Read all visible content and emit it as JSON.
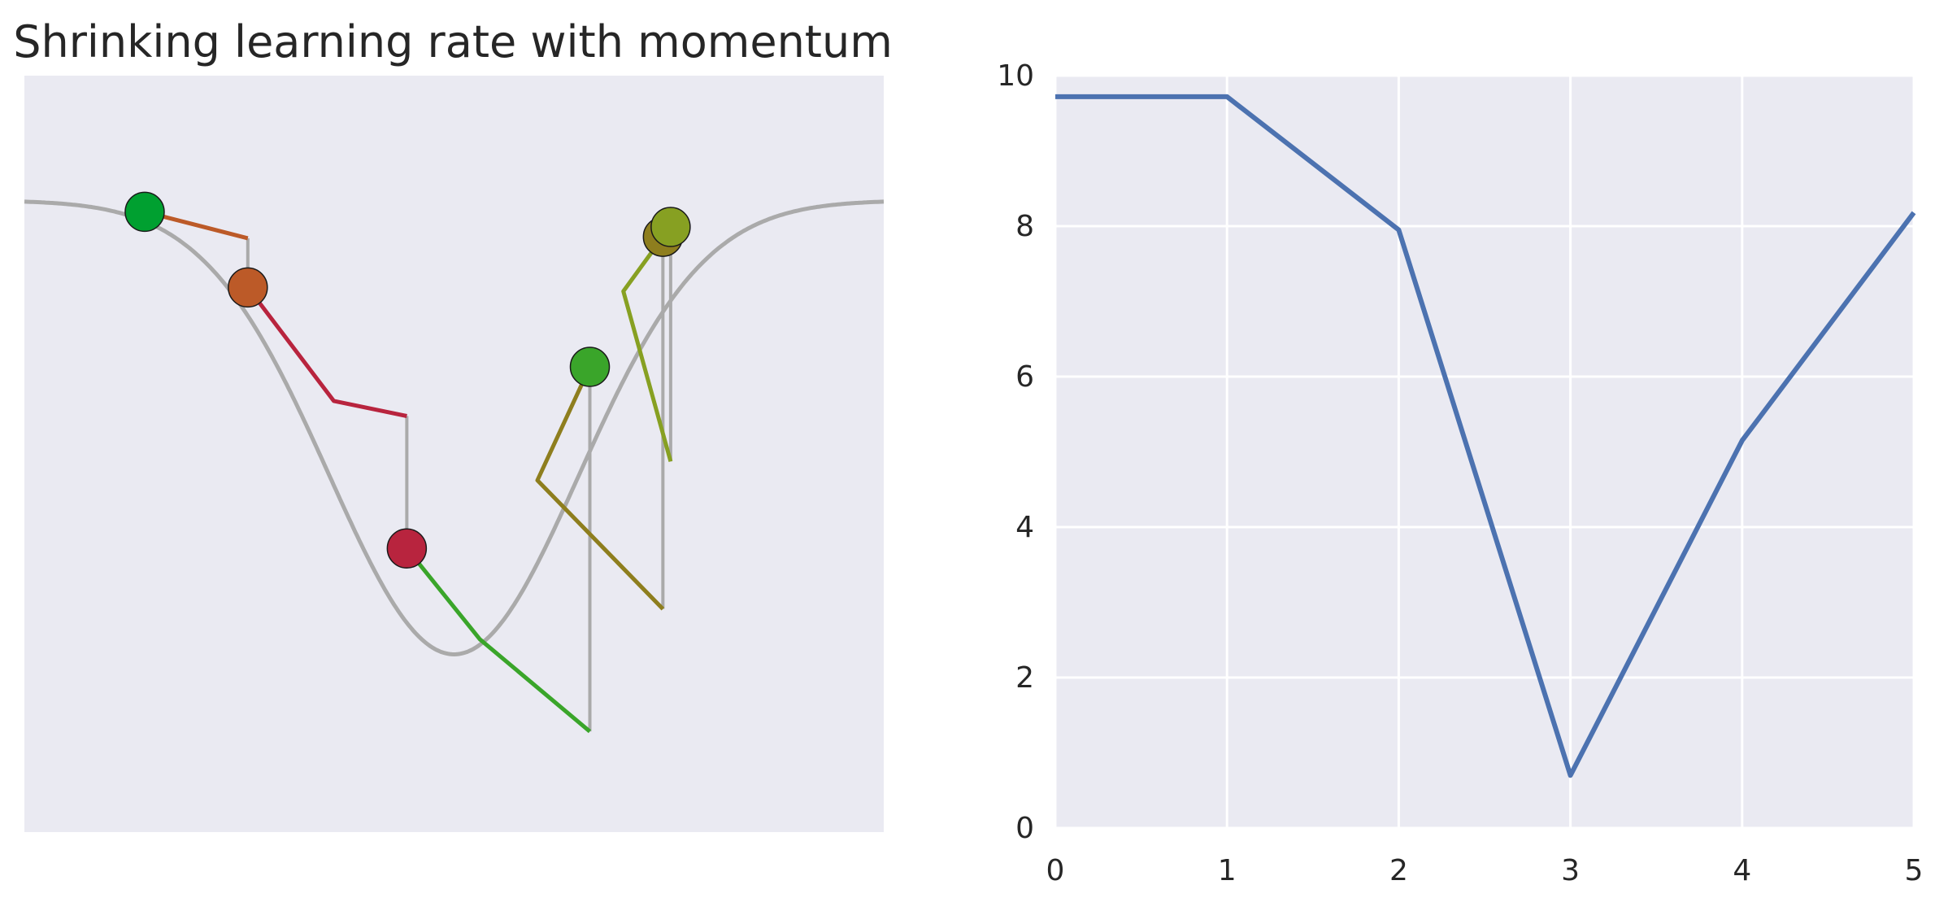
{
  "chart_data": [
    {
      "type": "line",
      "title": "Shrinking learning rate with momentum",
      "axes_visible": false,
      "grid": false,
      "background": "#EAEAF2",
      "curve": {
        "description_visible": "inverted gaussian loss landscape",
        "color": "#AAAAAA",
        "x_range": [
          0,
          1
        ],
        "y_range": [
          0,
          1
        ]
      },
      "steps": [
        {
          "x": 0.14,
          "y": 0.82,
          "color": "#00A030"
        },
        {
          "x": 0.26,
          "y": 0.72,
          "color": "#BC5A28"
        },
        {
          "x": 0.445,
          "y": 0.375,
          "color": "#B8243E"
        },
        {
          "x": 0.658,
          "y": 0.615,
          "color": "#3AA52A"
        },
        {
          "x": 0.743,
          "y": 0.787,
          "color": "#8E7E1E"
        },
        {
          "x": 0.752,
          "y": 0.8,
          "color": "#87A022"
        }
      ],
      "momentum_segments": [
        {
          "color": "#BC5A28",
          "points": [
            [
              0.14,
              0.82
            ],
            [
              0.26,
              0.785
            ]
          ]
        },
        {
          "color": "#B8243E",
          "points": [
            [
              0.26,
              0.72
            ],
            [
              0.36,
              0.57
            ],
            [
              0.445,
              0.55
            ]
          ]
        },
        {
          "color": "#3AA52A",
          "points": [
            [
              0.445,
              0.375
            ],
            [
              0.53,
              0.255
            ],
            [
              0.658,
              0.133
            ]
          ]
        },
        {
          "color": "#8E7E1E",
          "points": [
            [
              0.658,
              0.615
            ],
            [
              0.597,
              0.465
            ],
            [
              0.743,
              0.295
            ]
          ]
        },
        {
          "color": "#87A022",
          "points": [
            [
              0.743,
              0.787
            ],
            [
              0.697,
              0.715
            ],
            [
              0.752,
              0.49
            ]
          ]
        }
      ],
      "drop_lines": [
        {
          "x": 0.26,
          "from_y": 0.785,
          "to_y": 0.72
        },
        {
          "x": 0.445,
          "from_y": 0.55,
          "to_y": 0.375
        },
        {
          "x": 0.658,
          "from_y": 0.133,
          "to_y": 0.615
        },
        {
          "x": 0.743,
          "from_y": 0.295,
          "to_y": 0.787
        },
        {
          "x": 0.752,
          "from_y": 0.49,
          "to_y": 0.8
        }
      ]
    },
    {
      "type": "line",
      "title": "",
      "xlabel": "",
      "ylabel": "",
      "grid": true,
      "background": "#EAEAF2",
      "xlim": [
        0,
        5
      ],
      "ylim": [
        0,
        10
      ],
      "xticks": [
        0,
        1,
        2,
        3,
        4,
        5
      ],
      "yticks": [
        0,
        2,
        4,
        6,
        8,
        10
      ],
      "series": [
        {
          "color": "#4C72B0",
          "x": [
            0,
            1,
            2,
            3,
            4,
            5
          ],
          "values": [
            9.72,
            9.72,
            7.95,
            0.7,
            5.15,
            8.18
          ]
        }
      ]
    }
  ]
}
